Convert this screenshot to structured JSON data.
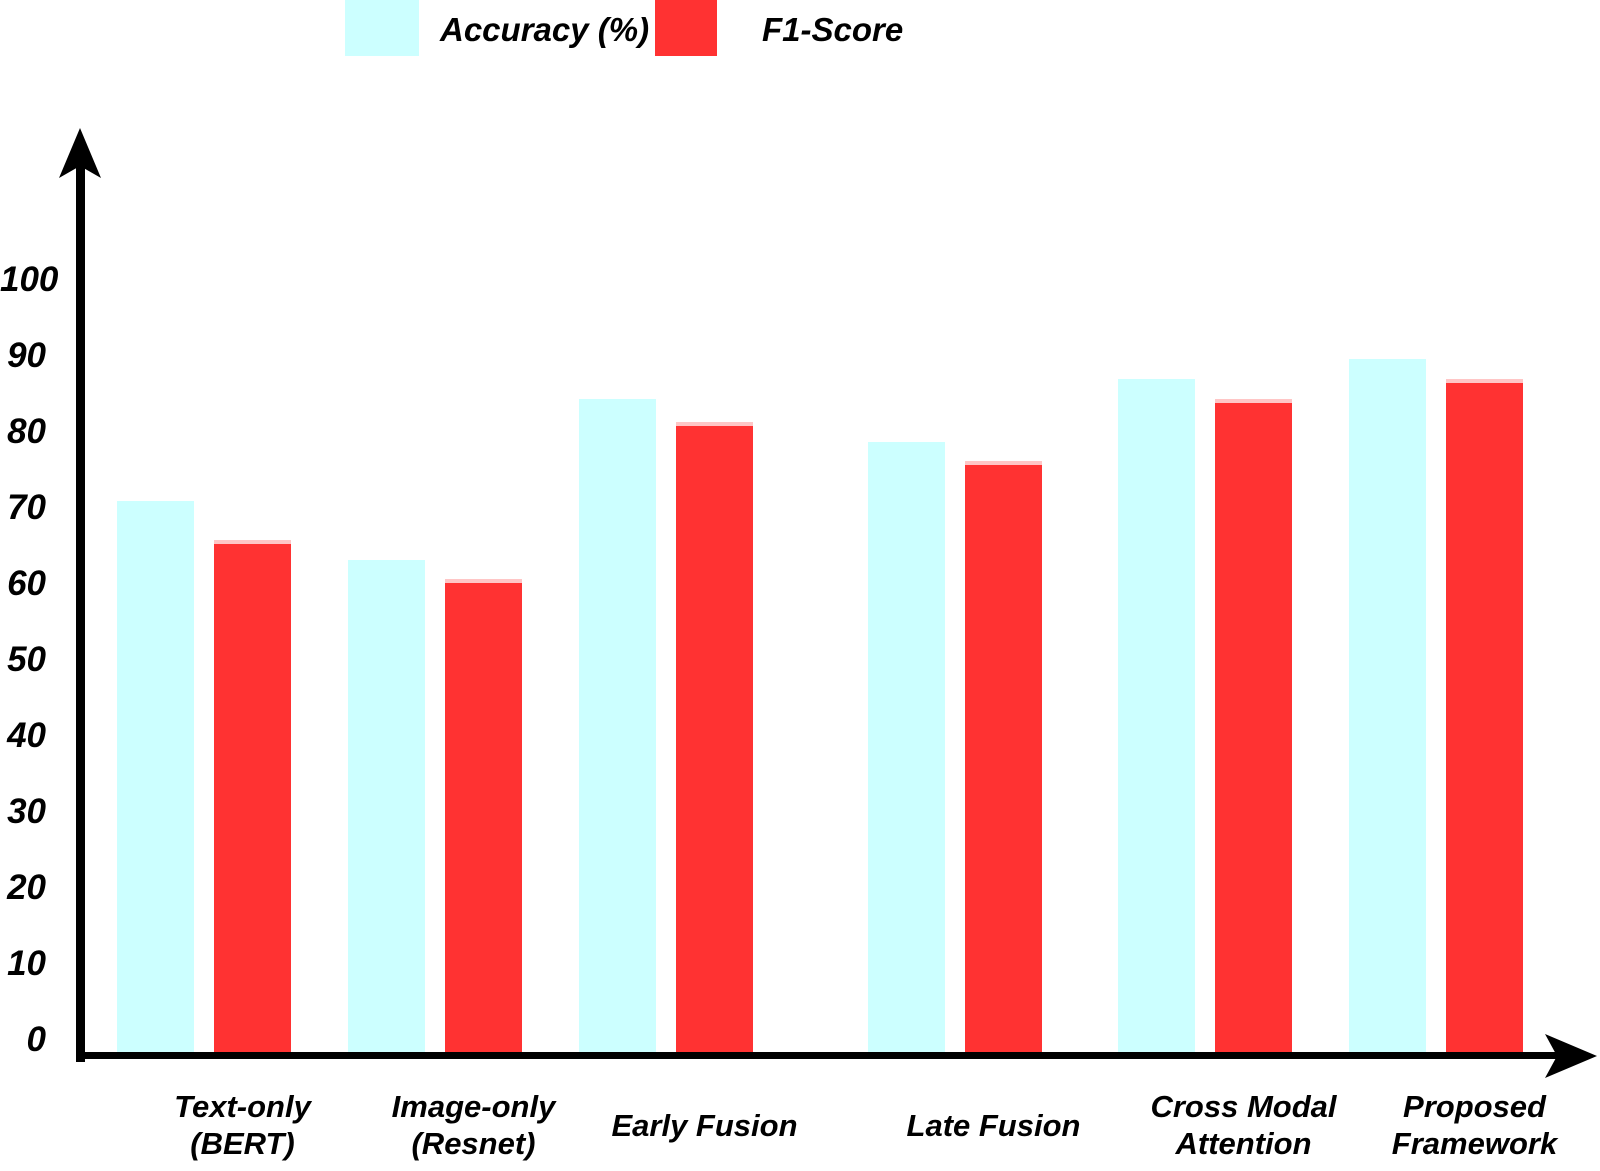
{
  "chart_data": {
    "type": "bar",
    "title": "",
    "legend_position": "top",
    "grid": false,
    "legend": [
      "Accuracy (%)",
      "F1-Score"
    ],
    "categories": [
      "Text-only (BERT)",
      "Image-only (Resnet)",
      "Early Fusion",
      "Late Fusion",
      "Cross Modal Attention",
      "Proposed Framework"
    ],
    "category_label_lines": [
      [
        "Text-only",
        "(BERT)"
      ],
      [
        "Image-only",
        "(Resnet)"
      ],
      [
        "Early Fusion"
      ],
      [
        "Late Fusion"
      ],
      [
        "Cross Modal",
        "Attention"
      ],
      [
        "Proposed",
        "Framework"
      ]
    ],
    "series": [
      {
        "name": "Accuracy (%)",
        "color": "#ccffff",
        "values": [
          71,
          63.5,
          84,
          78.5,
          86.5,
          89
        ]
      },
      {
        "name": "F1-Score",
        "color": "#ff3232",
        "edge_color": "#ffc6c6",
        "values": [
          66,
          61,
          81,
          76,
          84,
          86.5
        ]
      }
    ],
    "y_axis": {
      "min": 0,
      "max": 100,
      "tick_interval": 10,
      "tick_labels": [
        "0",
        "10",
        "20",
        "30",
        "40",
        "50",
        "60",
        "70",
        "80",
        "90",
        "100"
      ]
    },
    "axis_color": "#000000"
  }
}
